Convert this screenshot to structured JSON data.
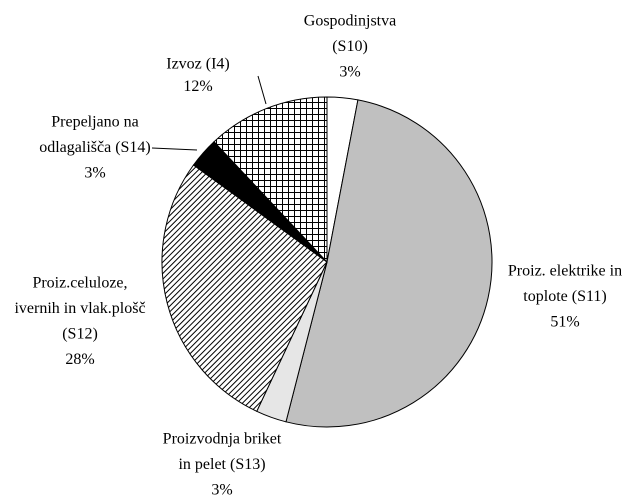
{
  "chart_data": {
    "type": "pie",
    "labels": [
      [
        "Gospodinjstva",
        "(S10)"
      ],
      [
        "Proiz. elektrike in",
        "toplote (S11)"
      ],
      [
        "Proizvodnja briket",
        "in pelet (S13)"
      ],
      [
        "Proiz.celuloze,",
        "ivernih in vlak.plošč",
        "(S12)"
      ],
      [
        "Prepeljano na",
        "odlagališča (S14)"
      ],
      [
        "Izvoz (I4)"
      ]
    ],
    "values": [
      3,
      51,
      3,
      28,
      3,
      12
    ],
    "value_labels": [
      "3%",
      "51%",
      "3%",
      "28%",
      "3%",
      "12%"
    ],
    "colors": [
      "#ffffff",
      "#c0c0c0",
      "#e6e6e6",
      "#ffffff",
      "#000000",
      "#ffffff"
    ],
    "patterns": [
      "none",
      "none",
      "none",
      "diagonal",
      "none",
      "grid"
    ]
  }
}
